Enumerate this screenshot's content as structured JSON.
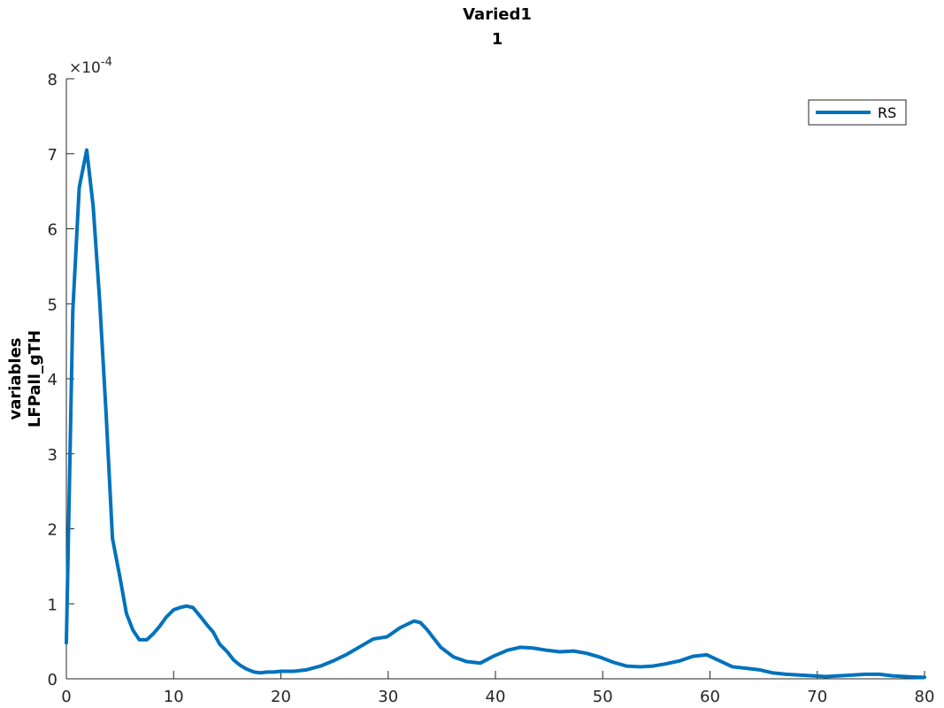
{
  "chart_data": {
    "type": "line",
    "title": "Varied1",
    "subtitle": "1",
    "xlabel": "",
    "ylabel_lines": [
      "variables",
      "LFPall_gTH"
    ],
    "exponent_base": "×10",
    "exponent_power": "-4",
    "xlim": [
      0,
      80
    ],
    "ylim": [
      0,
      8
    ],
    "x_ticks": [
      0,
      10,
      20,
      30,
      40,
      50,
      60,
      70,
      80
    ],
    "y_ticks": [
      0,
      1,
      2,
      3,
      4,
      5,
      6,
      7,
      8
    ],
    "y_scale_note": "values shown in units of 1e-4",
    "legend_position": "top-right",
    "series": [
      {
        "name": "RS",
        "color": "#0072BD",
        "x": [
          0,
          0.6,
          1.2,
          1.9,
          2.5,
          3.1,
          3.7,
          4.3,
          5.0,
          5.6,
          6.2,
          6.8,
          7.5,
          8.1,
          8.7,
          9.3,
          10.0,
          10.6,
          11.2,
          11.8,
          12.5,
          13.1,
          13.7,
          14.3,
          15.0,
          15.6,
          16.2,
          16.8,
          17.5,
          18.1,
          18.7,
          19.3,
          20.0,
          21.2,
          22.4,
          23.7,
          24.9,
          26.2,
          27.4,
          28.6,
          29.9,
          31.1,
          32.4,
          33.0,
          33.6,
          34.9,
          36.1,
          37.3,
          38.6,
          39.8,
          41.1,
          42.3,
          43.5,
          44.8,
          46.0,
          47.3,
          48.5,
          49.7,
          51.0,
          52.2,
          53.5,
          54.7,
          55.9,
          57.2,
          58.4,
          59.7,
          60.3,
          60.9,
          62.1,
          63.4,
          64.6,
          65.8,
          67.1,
          68.3,
          69.6,
          70.8,
          72.0,
          73.3,
          74.5,
          75.8,
          77.0,
          78.2,
          79.5,
          80
        ],
        "values": [
          0.48,
          4.9,
          6.55,
          7.05,
          6.3,
          5.05,
          3.55,
          1.87,
          1.35,
          0.87,
          0.65,
          0.52,
          0.52,
          0.6,
          0.7,
          0.82,
          0.92,
          0.95,
          0.97,
          0.95,
          0.83,
          0.72,
          0.62,
          0.46,
          0.36,
          0.25,
          0.18,
          0.13,
          0.09,
          0.08,
          0.09,
          0.09,
          0.1,
          0.1,
          0.12,
          0.17,
          0.24,
          0.33,
          0.43,
          0.53,
          0.56,
          0.68,
          0.77,
          0.75,
          0.66,
          0.42,
          0.29,
          0.23,
          0.21,
          0.3,
          0.38,
          0.42,
          0.41,
          0.38,
          0.36,
          0.37,
          0.34,
          0.29,
          0.22,
          0.17,
          0.16,
          0.17,
          0.2,
          0.24,
          0.3,
          0.32,
          0.28,
          0.24,
          0.16,
          0.14,
          0.12,
          0.08,
          0.06,
          0.05,
          0.04,
          0.03,
          0.04,
          0.05,
          0.06,
          0.06,
          0.04,
          0.03,
          0.02,
          0.02
        ]
      }
    ]
  }
}
